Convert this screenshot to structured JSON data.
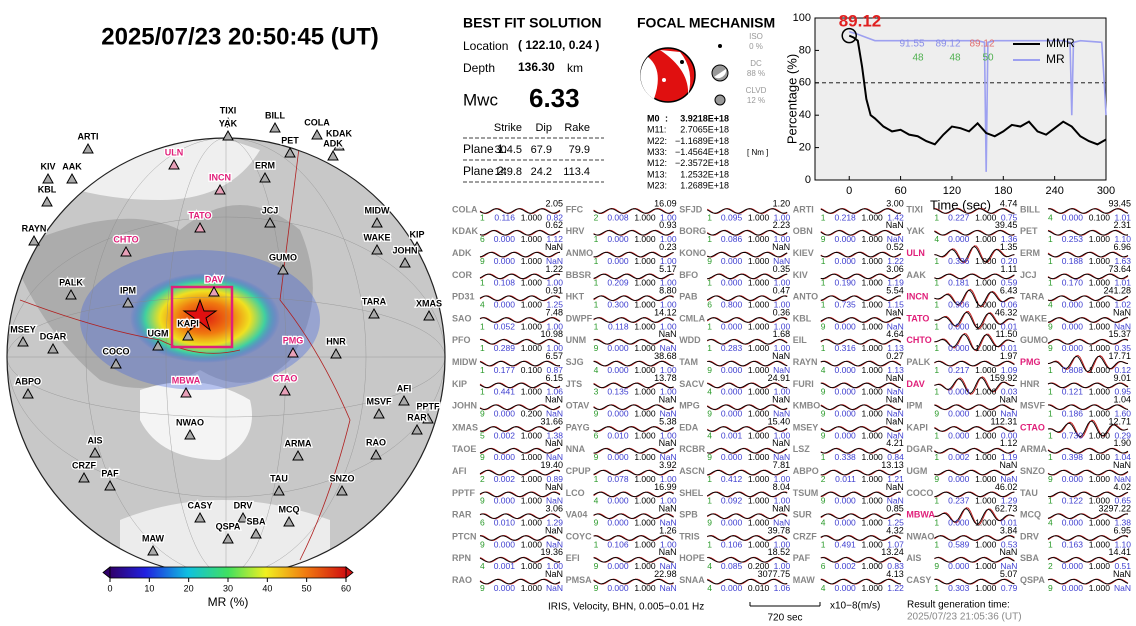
{
  "header": {
    "datetime": "2025/07/23  20:50:45 (UT)"
  },
  "map": {
    "stations": [
      "ARTI",
      "TIXI",
      "YAK",
      "BILL",
      "COLA",
      "KDAK",
      "ADK",
      "PET",
      "ULN",
      "KIV",
      "AAK",
      "ERM",
      "INCN",
      "KBL",
      "JCJ",
      "TATO",
      "MIDW",
      "RAYN",
      "CHTO",
      "WAKE",
      "KIP",
      "JOHN",
      "GUMO",
      "DAV",
      "PALK",
      "IPM",
      "TARA",
      "XMAS",
      "MSEY",
      "DGAR",
      "UGM",
      "KAPI",
      "PMG",
      "HNR",
      "COCO",
      "AFI",
      "MSVF",
      "PPTF",
      "RAR",
      "ABPO",
      "MBWA",
      "CTAO",
      "RAO",
      "NWAO",
      "ARMA",
      "AIS",
      "SNZO",
      "TAU",
      "CRZF",
      "PAF",
      "MCQ",
      "MAW",
      "CASY",
      "DRV",
      "QSPA",
      "SBA"
    ],
    "highlighted": [
      8,
      12,
      15,
      18,
      23,
      32,
      40,
      41
    ],
    "highlight_color": "#e0207a",
    "colorbar": {
      "label": "MR (%)",
      "lim": [
        0,
        60
      ],
      "ticks": [
        0,
        10,
        20,
        30,
        40,
        50,
        60
      ]
    }
  },
  "solution": {
    "title": "BEST FIT SOLUTION",
    "location_label": "Location",
    "location": "( 122.10,  0.24 )",
    "depth_label": "Depth",
    "depth": "136.30",
    "depth_unit": "km",
    "mw_label": "Mwc",
    "mw": "6.33",
    "headers": [
      "Strike",
      "Dip",
      "Rake"
    ],
    "planes": [
      [
        "Plane 1:",
        "304.5",
        "67.9",
        "79.9"
      ],
      [
        "Plane 2:",
        "149.8",
        "24.2",
        "113.4"
      ]
    ]
  },
  "focal": {
    "title": "FOCAL MECHANISM",
    "components": [
      [
        "ISO",
        "0 %"
      ],
      [
        "DC",
        "88 %"
      ],
      [
        "CLVD",
        "12 %"
      ]
    ],
    "moments": [
      [
        "M0",
        ":",
        "3.9218E+18"
      ],
      [
        "M11:",
        "",
        "2.7065E+18"
      ],
      [
        "M22:",
        "",
        "−1.1689E+18"
      ],
      [
        "M33:",
        "",
        "−1.4564E+18"
      ],
      [
        "M12:",
        "",
        "−2.3572E+18"
      ],
      [
        "M13:",
        "",
        "1.2532E+18"
      ],
      [
        "M23:",
        "",
        "1.2689E+18"
      ]
    ],
    "unit": "[ Nm ]"
  },
  "graph": {
    "type": "line",
    "x_label": "Time (sec)",
    "y_label": "Percentage (%)",
    "xlim": [
      -40,
      300
    ],
    "xticks": [
      0,
      60,
      120,
      180,
      240,
      300
    ],
    "ylim": [
      0,
      100
    ],
    "yticks": [
      0,
      20,
      40,
      60,
      80,
      100
    ],
    "reference_line": 60,
    "series": [
      {
        "name": "MMR",
        "color": "#000000",
        "x": [
          0,
          5,
          10,
          15,
          20,
          25,
          30,
          40,
          50,
          60,
          70,
          80,
          90,
          100,
          110,
          120,
          130,
          140,
          150,
          160,
          170,
          180,
          190,
          200,
          210,
          220,
          230,
          240,
          250,
          260,
          270,
          280,
          290,
          300
        ],
        "values": [
          89.12,
          88,
          86,
          70,
          50,
          40,
          38,
          33,
          30,
          31,
          28,
          27,
          24,
          22,
          28,
          33,
          32,
          30,
          35,
          29,
          27,
          30,
          34,
          33,
          36,
          30,
          28,
          32,
          36,
          33,
          27,
          24,
          22,
          25
        ]
      },
      {
        "name": "MR",
        "color": "#9da0f0",
        "x": [
          0,
          10,
          20,
          30,
          60,
          100,
          150,
          158,
          160,
          162,
          170,
          200,
          250,
          258,
          260,
          262,
          270,
          295,
          298,
          300
        ],
        "values": [
          91.55,
          90,
          88,
          86,
          86,
          86,
          86,
          85,
          5,
          85,
          86,
          86,
          86,
          85,
          40,
          85,
          86,
          85,
          60,
          40
        ]
      }
    ],
    "annotations": [
      {
        "text": "89.12",
        "color": "#e02020"
      },
      {
        "text": "91.55",
        "color": "#8a8ee8"
      },
      {
        "text": "89.12",
        "color": "#8a8ee8"
      },
      {
        "text": "89.12",
        "color": "#e07070"
      },
      {
        "text": "48",
        "color": "#50b050"
      },
      {
        "text": "48",
        "color": "#50b050"
      },
      {
        "text": "50",
        "color": "#50b050"
      }
    ]
  },
  "waveforms": {
    "columns": [
      [
        [
          "COLA",
          "2.05",
          "1",
          "0.116",
          "1.000",
          "0.82"
        ],
        [
          "KDAK",
          "0.62",
          "6",
          "0.000",
          "1.000",
          "1.12"
        ],
        [
          "ADK",
          "NaN",
          "9",
          "0.000",
          "1.000",
          "NaN"
        ],
        [
          "COR",
          "1.22",
          "1",
          "0.108",
          "1.000",
          "1.00"
        ],
        [
          "PD31",
          "0.91",
          "4",
          "0.000",
          "1.000",
          "1.25"
        ],
        [
          "SAO",
          "7.48",
          "1",
          "0.052",
          "1.000",
          "1.00"
        ],
        [
          "PFO",
          "10.98",
          "1",
          "0.289",
          "1.000",
          "1.00"
        ],
        [
          "MIDW",
          "6.57",
          "1",
          "0.177",
          "0.100",
          "0.87"
        ],
        [
          "KIP",
          "6.15",
          "1",
          "0.441",
          "1.000",
          "1.06"
        ],
        [
          "JOHN",
          "NaN",
          "9",
          "0.000",
          "0.200",
          "NaN"
        ],
        [
          "XMAS",
          "31.66",
          "5",
          "0.002",
          "1.000",
          "1.38"
        ],
        [
          "TAOE",
          "NaN",
          "9",
          "0.000",
          "1.000",
          "NaN"
        ],
        [
          "AFI",
          "19.40",
          "2",
          "0.002",
          "1.000",
          "0.89"
        ],
        [
          "PPTF",
          "NaN",
          "9",
          "0.000",
          "1.000",
          "NaN"
        ],
        [
          "RAR",
          "3.06",
          "6",
          "0.010",
          "1.000",
          "1.29"
        ],
        [
          "PTCN",
          "NaN",
          "9",
          "0.000",
          "1.000",
          "NaN"
        ],
        [
          "RPN",
          "19.36",
          "4",
          "0.001",
          "1.000",
          "1.00"
        ],
        [
          "RAO",
          "NaN",
          "9",
          "0.000",
          "1.000",
          "NaN"
        ]
      ],
      [
        [
          "FFC",
          "16.09",
          "2",
          "0.008",
          "1.000",
          "1.00"
        ],
        [
          "HRV",
          "0.93",
          "1",
          "0.000",
          "1.000",
          "1.00"
        ],
        [
          "ANMO",
          "0.23",
          "1",
          "0.000",
          "1.000",
          "1.00"
        ],
        [
          "BBSR",
          "5.17",
          "1",
          "0.209",
          "1.000",
          "1.00"
        ],
        [
          "HKT",
          "8.80",
          "1",
          "0.300",
          "1.000",
          "1.00"
        ],
        [
          "DWPF",
          "14.12",
          "1",
          "0.118",
          "1.000",
          "1.00"
        ],
        [
          "UNM",
          "NaN",
          "9",
          "0.000",
          "1.000",
          "NaN"
        ],
        [
          "SJG",
          "38.68",
          "4",
          "0.000",
          "1.000",
          "1.00"
        ],
        [
          "JTS",
          "13.78",
          "3",
          "0.135",
          "1.000",
          "1.00"
        ],
        [
          "OTAV",
          "NaN",
          "9",
          "0.000",
          "1.000",
          "NaN"
        ],
        [
          "PAYG",
          "5.38",
          "6",
          "0.010",
          "1.000",
          "1.00"
        ],
        [
          "NNA",
          "NaN",
          "9",
          "0.000",
          "1.000",
          "NaN"
        ],
        [
          "CPUP",
          "3.92",
          "1",
          "0.078",
          "1.000",
          "1.00"
        ],
        [
          "LCO",
          "16.99",
          "4",
          "0.000",
          "1.000",
          "1.00"
        ],
        [
          "VA04",
          "NaN",
          "9",
          "0.000",
          "1.000",
          "NaN"
        ],
        [
          "COYC",
          "1.26",
          "1",
          "0.106",
          "1.000",
          "1.00"
        ],
        [
          "EFI",
          "NaN",
          "9",
          "0.000",
          "1.000",
          "NaN"
        ],
        [
          "PMSA",
          "22.98",
          "9",
          "0.000",
          "1.000",
          "NaN"
        ]
      ],
      [
        [
          "SFJD",
          "1.20",
          "1",
          "0.095",
          "1.000",
          "1.00"
        ],
        [
          "BORG",
          "2.23",
          "1",
          "0.086",
          "1.000",
          "1.00"
        ],
        [
          "KONO",
          "NaN",
          "9",
          "0.000",
          "1.000",
          "NaN"
        ],
        [
          "BFO",
          "0.35",
          "1",
          "0.000",
          "1.000",
          "1.00"
        ],
        [
          "PAB",
          "0.47",
          "6",
          "0.800",
          "1.000",
          "1.00"
        ],
        [
          "CMLA",
          "0.36",
          "1",
          "0.000",
          "1.000",
          "1.00"
        ],
        [
          "WDD",
          "1.68",
          "1",
          "0.283",
          "1.000",
          "1.00"
        ],
        [
          "TAM",
          "NaN",
          "9",
          "0.000",
          "1.000",
          "NaN"
        ],
        [
          "SACV",
          "24.91",
          "4",
          "0.000",
          "1.000",
          "1.00"
        ],
        [
          "MPG",
          "NaN",
          "9",
          "0.000",
          "1.000",
          "NaN"
        ],
        [
          "EDA",
          "15.40",
          "4",
          "0.001",
          "1.000",
          "1.00"
        ],
        [
          "RCBR",
          "NaN",
          "9",
          "0.000",
          "1.000",
          "NaN"
        ],
        [
          "ASCN",
          "7.81",
          "1",
          "0.412",
          "1.000",
          "1.00"
        ],
        [
          "SHEL",
          "8.04",
          "1",
          "0.092",
          "1.000",
          "1.00"
        ],
        [
          "SPB",
          "NaN",
          "9",
          "0.000",
          "1.000",
          "NaN"
        ],
        [
          "TRIS",
          "39.78",
          "1",
          "0.106",
          "1.000",
          "1.00"
        ],
        [
          "HOPE",
          "18.52",
          "4",
          "0.085",
          "0.200",
          "1.00"
        ],
        [
          "SNAA",
          "3077.75",
          "4",
          "0.000",
          "0.010",
          "1.06"
        ]
      ],
      [
        [
          "ARTI",
          "3.00",
          "1",
          "0.218",
          "1.000",
          "1.42"
        ],
        [
          "OBN",
          "NaN",
          "9",
          "0.000",
          "1.000",
          "NaN"
        ],
        [
          "KIEV",
          "0.52",
          "1",
          "0.000",
          "1.000",
          "1.22"
        ],
        [
          "KIV",
          "3.06",
          "1",
          "0.190",
          "1.000",
          "1.19"
        ],
        [
          "ANTO",
          "5.54",
          "1",
          "0.735",
          "1.000",
          "1.15"
        ],
        [
          "KBL",
          "NaN",
          "9",
          "0.000",
          "1.000",
          "NaN"
        ],
        [
          "EIL",
          "4.64",
          "1",
          "0.316",
          "1.000",
          "1.13"
        ],
        [
          "RAYN",
          "0.27",
          "4",
          "0.000",
          "1.000",
          "1.13"
        ],
        [
          "FURI",
          "NaN",
          "9",
          "0.000",
          "1.000",
          "NaN"
        ],
        [
          "KMBO",
          "NaN",
          "9",
          "0.000",
          "1.000",
          "NaN"
        ],
        [
          "MSEY",
          "NaN",
          "9",
          "0.000",
          "1.000",
          "NaN"
        ],
        [
          "LSZ",
          "4.21",
          "1",
          "0.338",
          "1.000",
          "0.84"
        ],
        [
          "ABPO",
          "13.13",
          "2",
          "0.011",
          "1.000",
          "1.21"
        ],
        [
          "TSUM",
          "NaN",
          "9",
          "0.000",
          "1.000",
          "NaN"
        ],
        [
          "SUR",
          "0.85",
          "4",
          "0.000",
          "1.000",
          "1.25"
        ],
        [
          "CRZF",
          "4.32",
          "1",
          "0.491",
          "1.000",
          "1.07"
        ],
        [
          "PAF",
          "13.24",
          "6",
          "0.002",
          "1.000",
          "0.83"
        ],
        [
          "MAW",
          "4.13",
          "4",
          "0.000",
          "1.000",
          "1.22"
        ]
      ],
      [
        [
          "TIXI",
          "4.74",
          "1",
          "0.227",
          "1.000",
          "0.75"
        ],
        [
          "YAK",
          "39.45",
          "4",
          "0.000",
          "1.000",
          "1.36"
        ],
        [
          "ULN",
          "1.35",
          "1",
          "0.336",
          "1.000",
          "0.20"
        ],
        [
          "AAK",
          "1.11",
          "1",
          "0.181",
          "1.000",
          "0.59"
        ],
        [
          "INCN",
          "6.43",
          "1",
          "0.906",
          "1.000",
          "0.06"
        ],
        [
          "TATO",
          "46.32",
          "1",
          "0.000",
          "1.000",
          "0.01"
        ],
        [
          "CHTO",
          "11.50",
          "1",
          "0.000",
          "1.000",
          "0.01"
        ],
        [
          "PALK",
          "1.97",
          "1",
          "0.217",
          "1.000",
          "1.09"
        ],
        [
          "DAV",
          "159.92",
          "1",
          "0.000",
          "1.000",
          "0.03"
        ],
        [
          "IPM",
          "NaN",
          "9",
          "0.000",
          "1.000",
          "NaN"
        ],
        [
          "KAPI",
          "112.31",
          "1",
          "0.000",
          "1.000",
          "0.00"
        ],
        [
          "DGAR",
          "1.12",
          "1",
          "0.002",
          "1.000",
          "1.19"
        ],
        [
          "UGM",
          "NaN",
          "9",
          "0.000",
          "1.000",
          "NaN"
        ],
        [
          "COCO",
          "46.02",
          "1",
          "0.237",
          "1.000",
          "1.29"
        ],
        [
          "MBWA",
          "62.73",
          "1",
          "0.000",
          "1.000",
          "0.01"
        ],
        [
          "NWAO",
          "3.84",
          "1",
          "0.589",
          "1.000",
          "0.53"
        ],
        [
          "AIS",
          "NaN",
          "9",
          "0.000",
          "1.000",
          "NaN"
        ],
        [
          "CASY",
          "5.07",
          "1",
          "0.303",
          "1.000",
          "0.79"
        ]
      ],
      [
        [
          "BILL",
          "93.45",
          "4",
          "0.000",
          "0.100",
          "1.01"
        ],
        [
          "PET",
          "2.31",
          "1",
          "0.253",
          "1.000",
          "1.10"
        ],
        [
          "ERM",
          "6.96",
          "1",
          "0.188",
          "1.000",
          "1.63"
        ],
        [
          "JCJ",
          "73.64",
          "1",
          "0.170",
          "1.000",
          "1.01"
        ],
        [
          "TARA",
          "241.28",
          "4",
          "0.000",
          "1.000",
          "1.02"
        ],
        [
          "WAKE",
          "NaN",
          "9",
          "0.000",
          "1.000",
          "NaN"
        ],
        [
          "GUMO",
          "15.37",
          "9",
          "0.000",
          "1.000",
          "0.35"
        ],
        [
          "PMG",
          "17.71",
          "1",
          "0.808",
          "1.000",
          "0.12"
        ],
        [
          "HNR",
          "9.01",
          "1",
          "0.121",
          "1.000",
          "0.95"
        ],
        [
          "MSVF",
          "1.04",
          "1",
          "0.186",
          "1.000",
          "1.60"
        ],
        [
          "CTAO",
          "12.71",
          "1",
          "0.730",
          "1.000",
          "0.29"
        ],
        [
          "ARMA",
          "1.90",
          "1",
          "0.398",
          "1.000",
          "1.04"
        ],
        [
          "SNZO",
          "NaN",
          "9",
          "0.000",
          "1.000",
          "NaN"
        ],
        [
          "TAU",
          "4.02",
          "1",
          "0.122",
          "1.000",
          "0.65"
        ],
        [
          "MCQ",
          "3297.22",
          "4",
          "0.000",
          "1.000",
          "1.38"
        ],
        [
          "DRV",
          "6.95",
          "1",
          "0.163",
          "1.000",
          "1.10"
        ],
        [
          "SBA",
          "14.41",
          "2",
          "0.000",
          "1.000",
          "0.51"
        ],
        [
          "QSPA",
          "NaN",
          "9",
          "0.000",
          "1.000",
          "NaN"
        ]
      ]
    ],
    "highlighted": [
      [],
      [],
      [],
      [],
      [
        2,
        4,
        5,
        6,
        8,
        14
      ],
      [
        7,
        10
      ]
    ]
  },
  "footer": {
    "filter": "IRIS, Velocity,   BHN, 0.005−0.01 Hz",
    "scale": "720 sec",
    "units": "x10−8(m/s)",
    "generated_label": "Result generation time:",
    "generated": "2025/07/23 21:05:36 (UT)"
  }
}
